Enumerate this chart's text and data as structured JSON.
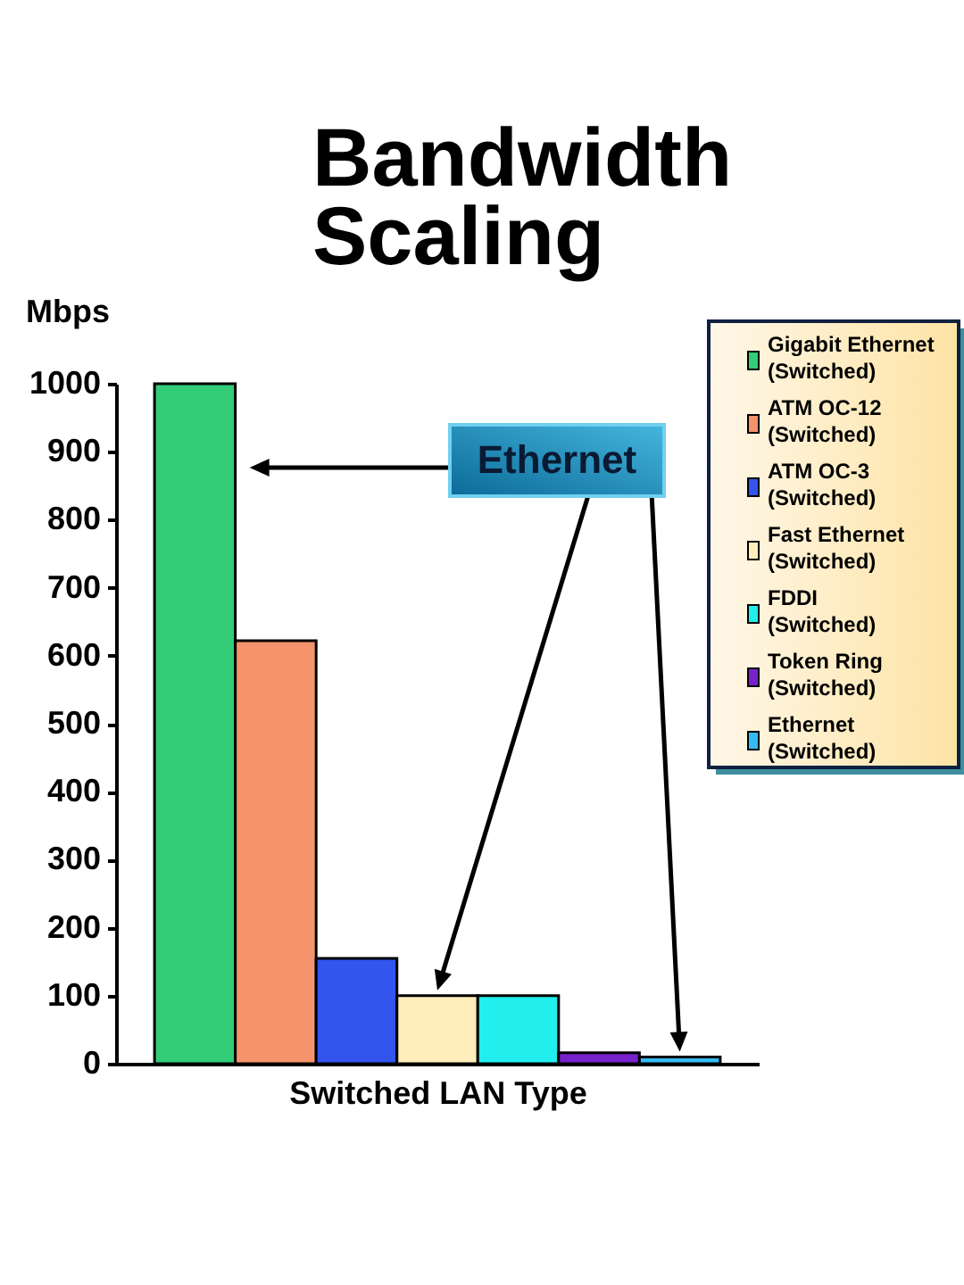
{
  "chart_data": {
    "type": "bar",
    "title": "Bandwidth Scaling",
    "ylabel": "Mbps",
    "xlabel": "Switched LAN Type",
    "categories": [
      null
    ],
    "series": [
      {
        "name": "Gigabit Ethernet (Switched)",
        "color": "#33cc77",
        "values": [
          1000
        ]
      },
      {
        "name": "ATM OC-12 (Switched)",
        "color": "#f5946c",
        "values": [
          622
        ]
      },
      {
        "name": "ATM OC-3 (Switched)",
        "color": "#3355ee",
        "values": [
          155
        ]
      },
      {
        "name": "Fast Ethernet (Switched)",
        "color": "#ffeebb",
        "values": [
          100
        ]
      },
      {
        "name": "FDDI (Switched)",
        "color": "#22eeee",
        "values": [
          100
        ]
      },
      {
        "name": "Token Ring (Switched)",
        "color": "#7722cc",
        "values": [
          16
        ]
      },
      {
        "name": "Ethernet (Switched)",
        "color": "#33bbf5",
        "values": [
          10
        ]
      }
    ],
    "ylim": [
      0,
      1000
    ],
    "yticks": [
      0,
      100,
      200,
      300,
      400,
      500,
      600,
      700,
      800,
      900,
      1000
    ],
    "legend": "top right",
    "tick_labels": "y",
    "annotations": [
      "Ethernet"
    ]
  }
}
